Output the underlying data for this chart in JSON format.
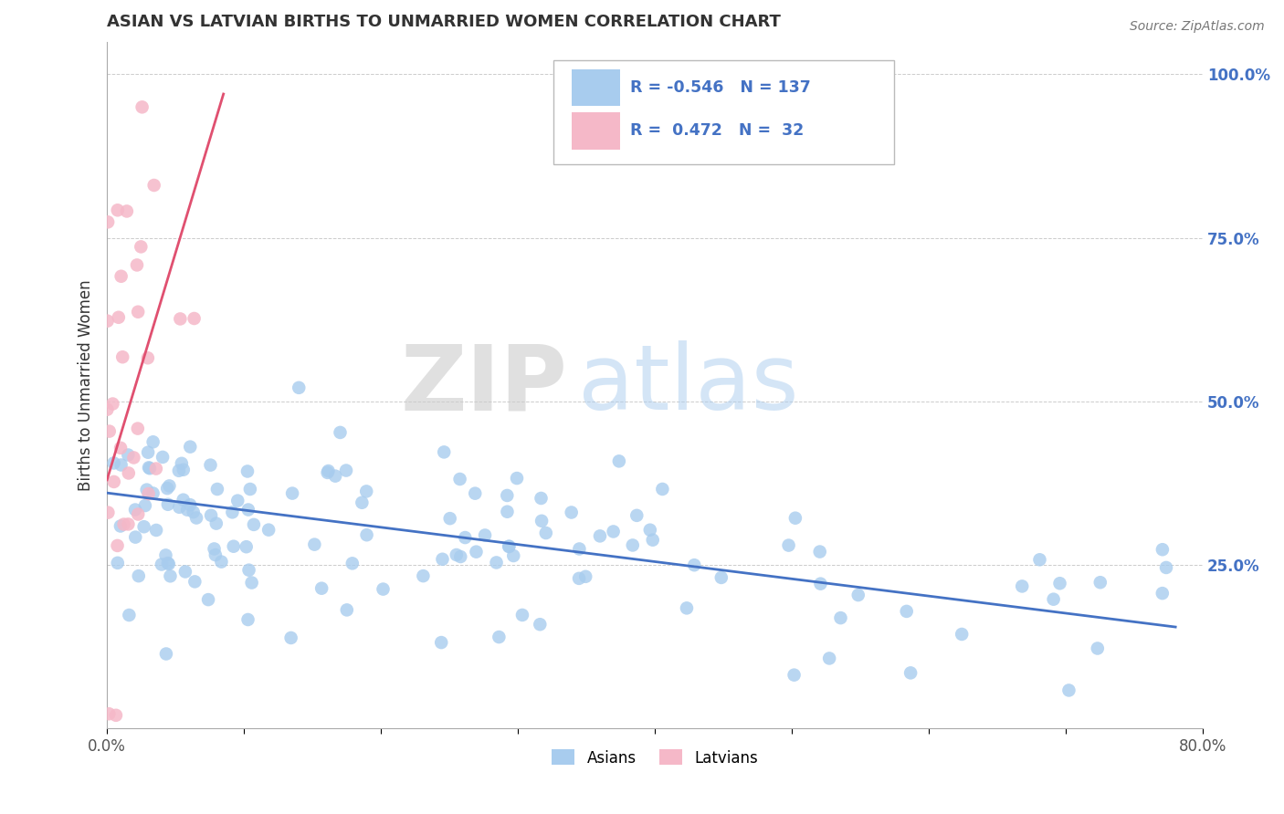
{
  "title": "ASIAN VS LATVIAN BIRTHS TO UNMARRIED WOMEN CORRELATION CHART",
  "source": "Source: ZipAtlas.com",
  "ylabel": "Births to Unmarried Women",
  "xlim": [
    0.0,
    0.8
  ],
  "ylim": [
    0.0,
    1.05
  ],
  "yticks_right": [
    0.25,
    0.5,
    0.75,
    1.0
  ],
  "ytick_right_labels": [
    "25.0%",
    "50.0%",
    "75.0%",
    "100.0%"
  ],
  "asian_color": "#A8CCEE",
  "latvian_color": "#F5B8C8",
  "asian_line_color": "#4472C4",
  "latvian_line_color": "#E05070",
  "watermark_zip": "ZIP",
  "watermark_atlas": "atlas",
  "legend_R_asian": "-0.546",
  "legend_N_asian": "137",
  "legend_R_latvian": "0.472",
  "legend_N_latvian": "32",
  "background_color": "#ffffff",
  "grid_color": "#cccccc",
  "title_color": "#333333",
  "legend_text_color": "#4472C4",
  "right_tick_color": "#4472C4"
}
